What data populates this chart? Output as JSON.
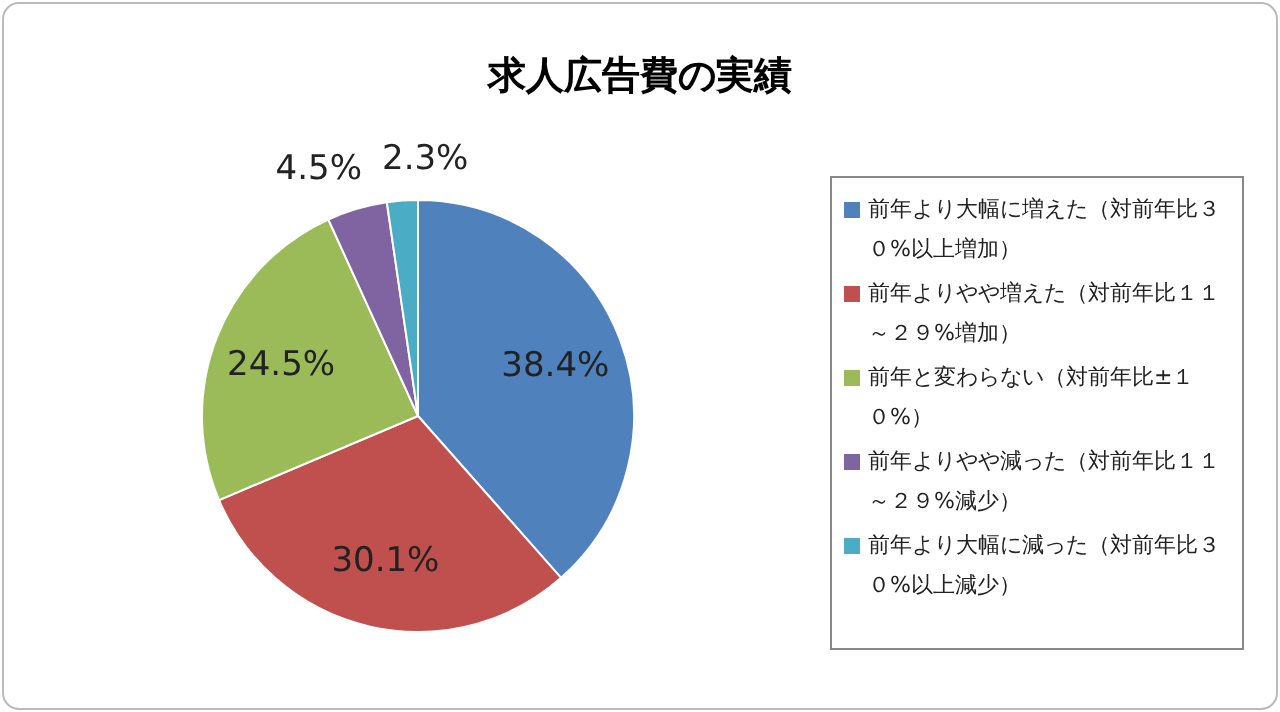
{
  "chart_data": {
    "type": "pie",
    "title": "求人広告費の実績",
    "categories": [
      "前年より大幅に増えた（対前年比３０%以上増加）",
      "前年よりやや増えた（対前年比１１～２９%増加）",
      "前年と変わらない（対前年比±１０%）",
      "前年よりやや減った（対前年比１１～２９%減少）",
      "前年より大幅に減った（対前年比３０%以上減少）"
    ],
    "values": [
      38.4,
      30.1,
      24.5,
      4.5,
      2.3
    ],
    "colors": [
      "#4f81bd",
      "#c0504d",
      "#9bbb59",
      "#8064a2",
      "#4bacc6"
    ],
    "value_labels": [
      "38.4%",
      "30.1%",
      "24.5%",
      "4.5%",
      "2.3%"
    ],
    "legend": "right"
  }
}
